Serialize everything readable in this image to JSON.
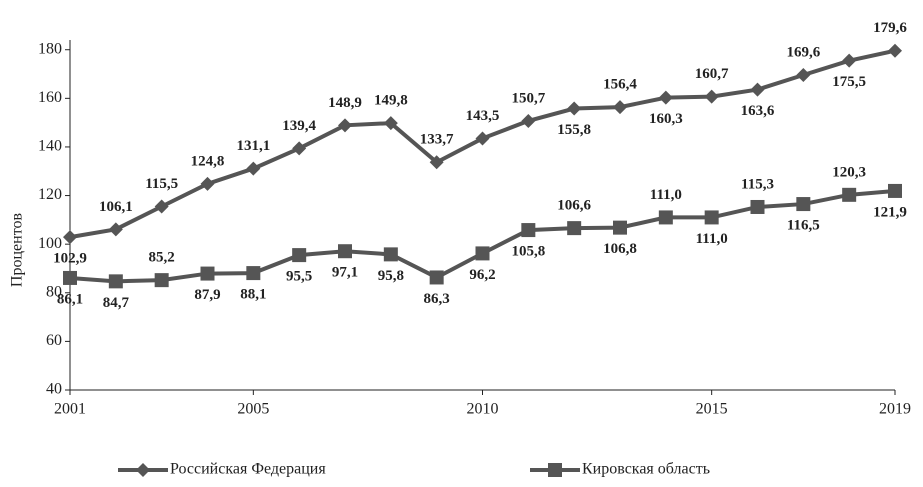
{
  "chart_data": {
    "type": "line",
    "y_label": "Процентов",
    "x": [
      2001,
      2002,
      2003,
      2004,
      2005,
      2006,
      2007,
      2008,
      2009,
      2010,
      2011,
      2012,
      2013,
      2014,
      2015,
      2016,
      2017,
      2018,
      2019
    ],
    "xlim": [
      2001,
      2019
    ],
    "xticks": [
      2001,
      2005,
      2010,
      2015,
      2019
    ],
    "ylim": [
      40,
      184
    ],
    "yticks": [
      40,
      60,
      80,
      100,
      120,
      140,
      160,
      180
    ],
    "series": [
      {
        "name": "Российская Федерация",
        "color": "#555555",
        "marker": "diamond",
        "values": [
          102.9,
          106.1,
          115.5,
          124.8,
          131.1,
          139.4,
          148.9,
          149.8,
          133.7,
          143.5,
          150.7,
          155.8,
          156.4,
          160.3,
          160.7,
          163.6,
          169.6,
          175.5,
          179.6
        ],
        "value_labels": [
          "102,9",
          "106,1",
          "115,5",
          "124,8",
          "131,1",
          "139,4",
          "148,9",
          "149,8",
          "133,7",
          "143,5",
          "150,7",
          "155,8",
          "156,4",
          "160,3",
          "160,7",
          "163,6",
          "169,6",
          "175,5",
          "179,6"
        ]
      },
      {
        "name": "Кировская область",
        "color": "#555555",
        "marker": "square",
        "values": [
          86.1,
          84.7,
          85.2,
          87.9,
          88.1,
          95.5,
          97.1,
          95.8,
          86.3,
          96.2,
          105.8,
          106.6,
          106.8,
          111.0,
          111.0,
          115.3,
          116.5,
          120.3,
          121.9
        ],
        "value_labels": [
          "86,1",
          "84,7",
          "85,2",
          "87,9",
          "88,1",
          "95,5",
          "97,1",
          "95,8",
          "86,3",
          "96,2",
          "105,8",
          "106,6",
          "106,8",
          "111,0",
          "111,0",
          "115,3",
          "116,5",
          "120,3",
          "121,9"
        ]
      }
    ]
  }
}
